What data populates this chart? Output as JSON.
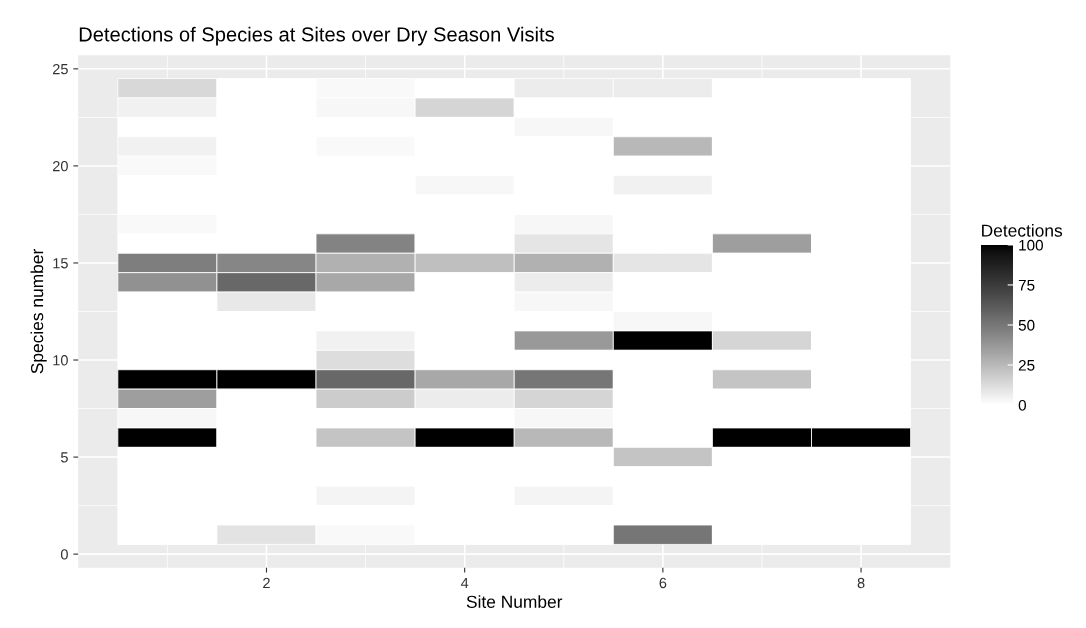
{
  "chart_data": {
    "type": "heatmap",
    "title": "Detections of Species at Sites over Dry Season Visits",
    "xlabel": "Site Number",
    "ylabel": "Species number",
    "clabel": "Detections",
    "x": [
      1,
      2,
      3,
      4,
      5,
      6,
      7,
      8
    ],
    "y": [
      24,
      23,
      22,
      21,
      20,
      19,
      18,
      17,
      16,
      15,
      14,
      13,
      12,
      11,
      10,
      9,
      8,
      7,
      6,
      5,
      4,
      3,
      2,
      1
    ],
    "xlim": [
      0.1,
      8.9
    ],
    "xticks": [
      2,
      4,
      6,
      8
    ],
    "ylim": [
      -0.7,
      25.7
    ],
    "yticks": [
      0,
      5,
      10,
      15,
      20,
      25
    ],
    "clim": [
      0,
      100
    ],
    "cticks": [
      0,
      25,
      50,
      75,
      100
    ],
    "grid": true,
    "cells": [
      [
        14,
        0,
        2,
        0,
        7,
        7,
        0,
        0
      ],
      [
        5,
        0,
        3,
        15,
        0,
        0,
        0,
        0
      ],
      [
        0,
        0,
        0,
        0,
        3,
        0,
        0,
        0
      ],
      [
        5,
        0,
        2,
        0,
        0,
        25,
        0,
        0
      ],
      [
        2,
        0,
        0,
        0,
        0,
        0,
        0,
        0
      ],
      [
        0,
        0,
        0,
        3,
        0,
        5,
        0,
        0
      ],
      [
        0,
        0,
        0,
        0,
        0,
        0,
        0,
        0
      ],
      [
        2,
        0,
        0,
        0,
        3,
        0,
        0,
        0
      ],
      [
        0,
        0,
        45,
        0,
        9,
        0,
        35,
        0
      ],
      [
        47,
        44,
        28,
        23,
        28,
        9,
        0,
        0
      ],
      [
        40,
        56,
        31,
        0,
        7,
        0,
        0,
        0
      ],
      [
        0,
        8,
        0,
        0,
        3,
        0,
        0,
        0
      ],
      [
        0,
        0,
        0,
        0,
        0,
        3,
        0,
        0
      ],
      [
        0,
        0,
        5,
        0,
        37,
        100,
        15,
        0
      ],
      [
        0,
        0,
        12,
        0,
        0,
        0,
        0,
        0
      ],
      [
        100,
        100,
        56,
        31,
        50,
        0,
        21,
        0
      ],
      [
        35,
        0,
        18,
        7,
        15,
        0,
        0,
        0
      ],
      [
        3,
        0,
        0,
        0,
        3,
        0,
        0,
        0
      ],
      [
        100,
        0,
        21,
        100,
        25,
        0,
        100,
        100
      ],
      [
        0,
        0,
        0,
        0,
        0,
        21,
        0,
        0
      ],
      [
        0,
        0,
        0,
        0,
        0,
        0,
        0,
        0
      ],
      [
        0,
        0,
        4,
        0,
        4,
        0,
        0,
        0
      ],
      [
        0,
        0,
        0,
        0,
        0,
        0,
        0,
        0
      ],
      [
        0,
        10,
        2,
        0,
        0,
        50,
        0,
        0
      ]
    ]
  }
}
